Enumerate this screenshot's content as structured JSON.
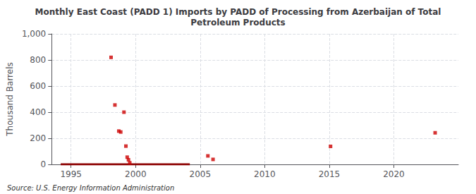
{
  "chart_data": {
    "type": "scatter",
    "title": "Monthly East Coast (PADD 1) Imports by PADD of Processing from Azerbaijan of Total\nPetroleum Products",
    "ylabel": "Thousand Barrels",
    "annotations": [
      "Source: U.S. Energy Information Administration"
    ],
    "series": [
      {
        "type": "line",
        "color": "#8b0000",
        "x": [
          1994.2,
          2004.2
        ],
        "values": [
          0,
          0
        ]
      },
      {
        "type": "scatter",
        "color": "#cc0000",
        "marker": "square",
        "x": [
          1998.1,
          1998.4,
          1998.7,
          1998.85,
          1999.1,
          1999.25,
          1999.35,
          1999.45,
          1999.55,
          2005.6,
          2006.0,
          2015.1,
          2023.2
        ],
        "values": [
          820,
          455,
          255,
          248,
          400,
          140,
          55,
          35,
          12,
          65,
          38,
          138,
          242
        ]
      }
    ],
    "xlim": [
      1993.5,
      2025
    ],
    "ylim": [
      0,
      1000
    ],
    "xticks": [
      1995,
      2000,
      2005,
      2010,
      2015,
      2020
    ],
    "yticks": [
      0,
      200,
      400,
      600,
      800,
      {
        "value": 1000,
        "label": "1,000"
      }
    ],
    "grid": true
  }
}
